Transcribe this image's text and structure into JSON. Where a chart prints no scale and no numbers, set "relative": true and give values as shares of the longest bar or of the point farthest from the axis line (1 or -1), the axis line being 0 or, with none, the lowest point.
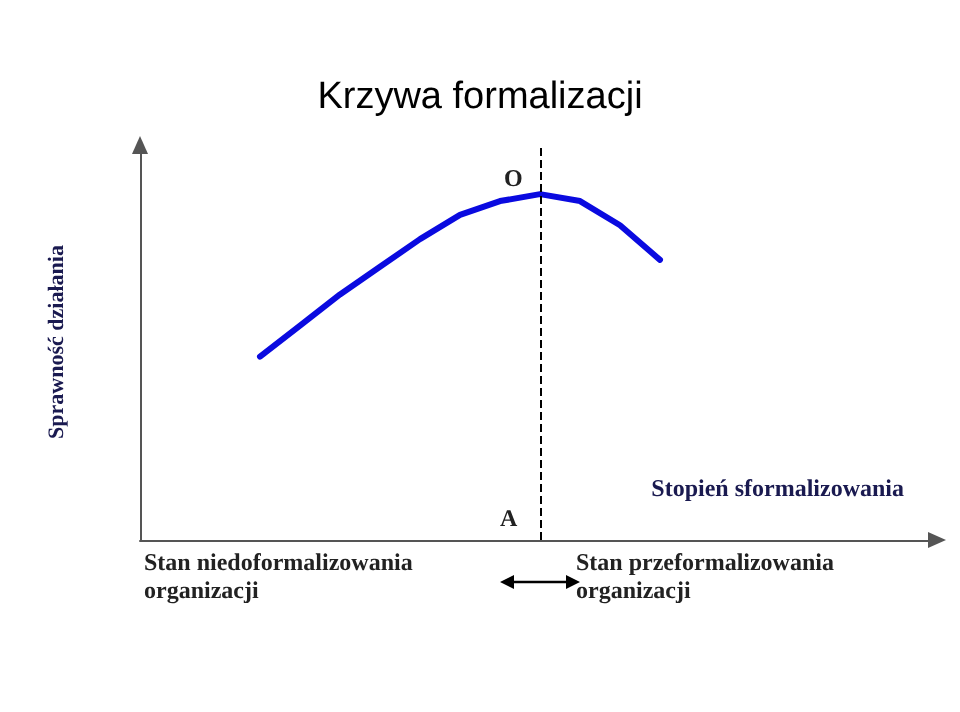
{
  "chart_data": {
    "type": "line",
    "title": "Krzywa formalizacji",
    "ylabel": "Sprawność działania",
    "xlabel": "Stopień sformalizowania",
    "relative": true,
    "marker": "none",
    "line_style": "solid",
    "grid": false,
    "categories": [
      null,
      null,
      null,
      null,
      null,
      null,
      null,
      null,
      null,
      null,
      null,
      null,
      null,
      null,
      null,
      null,
      null,
      null,
      null,
      null,
      null
    ],
    "series": [
      {
        "color": "#0a0ae0",
        "values": [
          null,
          null,
          null,
          0.53,
          0.62,
          0.71,
          0.79,
          0.87,
          0.94,
          0.98,
          1,
          0.98,
          0.91,
          0.81,
          null,
          null,
          null,
          null,
          null,
          null,
          null
        ]
      }
    ],
    "annotations": [
      "O",
      "A",
      "Stan niedoformalizowania organizacji",
      "Stan przeformalizowania organizacji"
    ]
  }
}
